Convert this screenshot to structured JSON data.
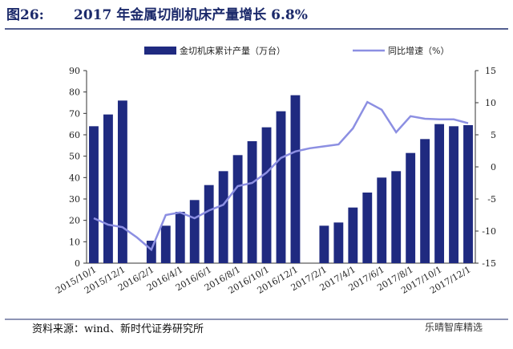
{
  "figure_label": "图26:",
  "chart_data": {
    "type": "bar",
    "title": "2017 年金属切削机床产量增长 6.8%",
    "categories": [
      "2015/10/1",
      null,
      "2015/12/1",
      null,
      "2016/2/1",
      null,
      "2016/4/1",
      null,
      "2016/6/1",
      null,
      "2016/8/1",
      null,
      "2016/10/1",
      null,
      "2016/12/1",
      null,
      "2017/2/1",
      null,
      "2017/4/1",
      null,
      "2017/6/1",
      null,
      "2017/8/1",
      null,
      "2017/10/1",
      null,
      "2017/12/1"
    ],
    "series": [
      {
        "name": "金切机床累计产量（万台）",
        "color": "#1f2a80",
        "type": "bar",
        "values": [
          64,
          69.5,
          76,
          null,
          10.5,
          17.5,
          24,
          29.5,
          36.5,
          43,
          50.5,
          57,
          63.5,
          71,
          78.5,
          null,
          17.5,
          19,
          26,
          33,
          40,
          43,
          51.5,
          58,
          65,
          64,
          64.5
        ]
      },
      {
        "name": "同比增速（%）",
        "color": "#8c8fe2",
        "type": "line",
        "axis": "y2",
        "values": [
          -8,
          -9,
          -9.4,
          -11,
          -12.9,
          -7.5,
          -7.1,
          -8,
          -6.8,
          -5.9,
          -3,
          -2.5,
          -0.9,
          1.4,
          2.4,
          2.9,
          3.2,
          3.5,
          6,
          10.1,
          8.9,
          5.4,
          7.9,
          7.5,
          7.4,
          7.4,
          6.8
        ]
      }
    ],
    "ylim": [
      0,
      90
    ],
    "yticks": [
      0,
      10,
      20,
      30,
      40,
      50,
      60,
      70,
      80,
      90
    ],
    "y2lim": [
      -15,
      15
    ],
    "y2ticks": [
      -15,
      -10,
      -5,
      0,
      5,
      10,
      15
    ],
    "legend": "top"
  },
  "source": "资料来源：wind、新时代证券研究所",
  "watermark": "乐晴智库精选"
}
